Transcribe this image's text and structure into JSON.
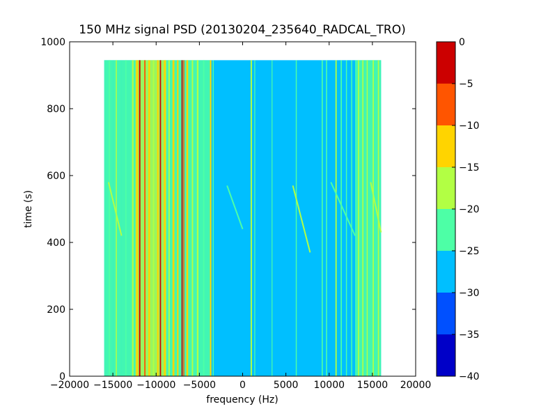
{
  "chart_data": {
    "type": "heatmap",
    "title": "150 MHz signal PSD (20130204_235640_RADCAL_TRO)",
    "xlabel": "frequency (Hz)",
    "ylabel": "time (s)",
    "xlim": [
      -20000,
      20000
    ],
    "ylim": [
      0,
      1000
    ],
    "x_ticks": [
      -20000,
      -15000,
      -10000,
      -5000,
      0,
      5000,
      10000,
      15000,
      20000
    ],
    "x_tick_labels": [
      "−20000",
      "−15000",
      "−10000",
      "−5000",
      "0",
      "5000",
      "10000",
      "15000",
      "20000"
    ],
    "y_ticks": [
      0,
      200,
      400,
      600,
      800,
      1000
    ],
    "y_tick_labels": [
      "0",
      "200",
      "400",
      "600",
      "800",
      "1000"
    ],
    "data_extent": {
      "x": [
        -16000,
        16000
      ],
      "y": [
        0,
        945
      ]
    },
    "background_level": -27.5,
    "grid": false,
    "colorbar": {
      "levels": [
        0,
        -5,
        -10,
        -15,
        -20,
        -25,
        -30,
        -35,
        -40
      ],
      "level_labels": [
        "0",
        "−5",
        "−10",
        "−15",
        "−20",
        "−25",
        "−30",
        "−35",
        "−40"
      ],
      "bands": [
        {
          "from": -5,
          "to": 0,
          "color": "#cc0000"
        },
        {
          "from": -10,
          "to": -5,
          "color": "#ff5500"
        },
        {
          "from": -15,
          "to": -10,
          "color": "#ffd400"
        },
        {
          "from": -20,
          "to": -15,
          "color": "#b2ff44"
        },
        {
          "from": -25,
          "to": -20,
          "color": "#4dffa6"
        },
        {
          "from": -30,
          "to": -25,
          "color": "#00bfff"
        },
        {
          "from": -35,
          "to": -30,
          "color": "#0050ff"
        },
        {
          "from": -40,
          "to": -35,
          "color": "#0000c8"
        }
      ]
    },
    "frequency_bands": [
      {
        "from": -16000,
        "to": -15000,
        "level": -22.5
      },
      {
        "from": -15000,
        "to": -14000,
        "level": -21
      },
      {
        "from": -14000,
        "to": -12400,
        "level": -22.5
      },
      {
        "from": -12400,
        "to": -8800,
        "level": -17.5
      },
      {
        "from": -8800,
        "to": -5000,
        "level": -21
      },
      {
        "from": -5000,
        "to": -3600,
        "level": -22.5
      },
      {
        "from": 13000,
        "to": 14000,
        "level": -22.5
      },
      {
        "from": 14000,
        "to": 16000,
        "level": -22.5
      }
    ],
    "spectral_lines": [
      {
        "x": -15400,
        "width": 180,
        "level": -22.5
      },
      {
        "x": -14600,
        "width": 120,
        "level": -17.5
      },
      {
        "x": -13500,
        "width": 150,
        "level": -22.5
      },
      {
        "x": -12700,
        "width": 180,
        "level": -17.5
      },
      {
        "x": -12200,
        "width": 220,
        "level": -12.5
      },
      {
        "x": -11900,
        "width": 160,
        "level": -2.5
      },
      {
        "x": -11300,
        "width": 150,
        "level": -7.5
      },
      {
        "x": -10800,
        "width": 200,
        "level": -12.5
      },
      {
        "x": -10300,
        "width": 160,
        "level": -17.5
      },
      {
        "x": -9800,
        "width": 180,
        "level": -12.5
      },
      {
        "x": -9500,
        "width": 140,
        "level": -2.5
      },
      {
        "x": -9000,
        "width": 200,
        "level": -12.5
      },
      {
        "x": -8500,
        "width": 160,
        "level": -17.5
      },
      {
        "x": -8000,
        "width": 220,
        "level": -12.5
      },
      {
        "x": -7500,
        "width": 160,
        "level": -12.5
      },
      {
        "x": -7000,
        "width": 140,
        "level": -2.5
      },
      {
        "x": -6800,
        "width": 120,
        "level": -7.5
      },
      {
        "x": -6400,
        "width": 200,
        "level": -12.5
      },
      {
        "x": -5800,
        "width": 160,
        "level": -17.5
      },
      {
        "x": -5200,
        "width": 180,
        "level": -17.5
      },
      {
        "x": -4500,
        "width": 160,
        "level": -22.5
      },
      {
        "x": -3700,
        "width": 160,
        "level": -12.5
      },
      {
        "x": -3400,
        "width": 120,
        "level": -22.5
      },
      {
        "x": 1000,
        "width": 160,
        "level": -17.5
      },
      {
        "x": 1400,
        "width": 100,
        "level": -22.5
      },
      {
        "x": 3400,
        "width": 90,
        "level": -22.5
      },
      {
        "x": 6200,
        "width": 120,
        "level": -22.5
      },
      {
        "x": 9200,
        "width": 140,
        "level": -22.5
      },
      {
        "x": 9700,
        "width": 130,
        "level": -22.5
      },
      {
        "x": 10800,
        "width": 150,
        "level": -17.5
      },
      {
        "x": 11400,
        "width": 140,
        "level": -22.5
      },
      {
        "x": 12000,
        "width": 120,
        "level": -22.5
      },
      {
        "x": 12600,
        "width": 120,
        "level": -22.5
      },
      {
        "x": 13400,
        "width": 140,
        "level": -17.5
      },
      {
        "x": 13900,
        "width": 140,
        "level": -17.5
      },
      {
        "x": 14400,
        "width": 120,
        "level": -17.5
      },
      {
        "x": 15100,
        "width": 140,
        "level": -17.5
      },
      {
        "x": 15700,
        "width": 140,
        "level": -17.5
      }
    ],
    "drifting_tracks": [
      {
        "x0": -1800,
        "y0": 570,
        "x1": 0,
        "y1": 440,
        "level": -22.5
      },
      {
        "x0": 5800,
        "y0": 570,
        "x1": 7800,
        "y1": 370,
        "level": -17.5
      },
      {
        "x0": -15500,
        "y0": 580,
        "x1": -14000,
        "y1": 420,
        "level": -17.5
      },
      {
        "x0": 10200,
        "y0": 580,
        "x1": 13000,
        "y1": 420,
        "level": -22.5
      },
      {
        "x0": 14800,
        "y0": 580,
        "x1": 16000,
        "y1": 430,
        "level": -17.5
      }
    ]
  }
}
